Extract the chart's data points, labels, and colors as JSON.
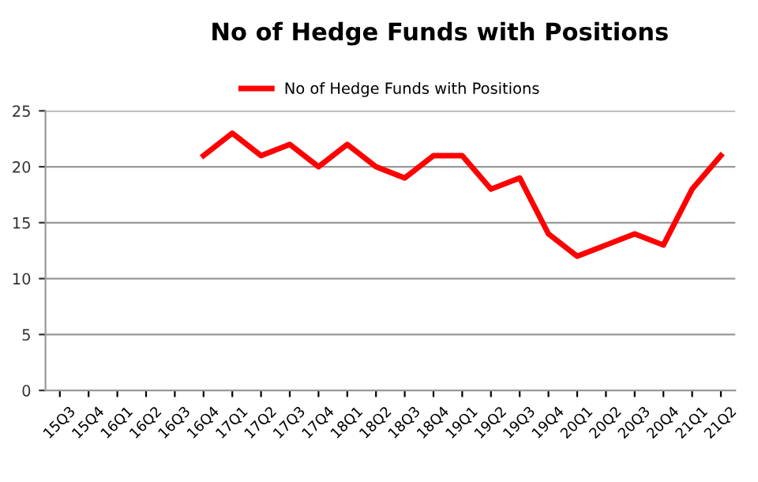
{
  "chart_data": {
    "type": "line",
    "title": "No of Hedge Funds with Positions",
    "categories": [
      "15Q3",
      "15Q4",
      "16Q1",
      "16Q2",
      "16Q3",
      "16Q4",
      "17Q1",
      "17Q2",
      "17Q3",
      "17Q4",
      "18Q1",
      "18Q2",
      "18Q3",
      "18Q4",
      "19Q1",
      "19Q2",
      "19Q3",
      "19Q4",
      "20Q1",
      "20Q2",
      "20Q3",
      "20Q4",
      "21Q1",
      "21Q2"
    ],
    "series": [
      {
        "name": "No of Hedge Funds with Positions",
        "color": "#ff0000",
        "values": [
          null,
          null,
          null,
          null,
          null,
          21,
          23,
          21,
          22,
          20,
          22,
          20,
          19,
          21,
          21,
          18,
          19,
          14,
          12,
          13,
          14,
          13,
          18,
          21
        ]
      }
    ],
    "ylim": [
      0,
      25
    ],
    "yticks": [
      0,
      5,
      10,
      15,
      20,
      25
    ],
    "grid": "y",
    "legend": "top",
    "marker": "none",
    "line_style": "solid"
  }
}
